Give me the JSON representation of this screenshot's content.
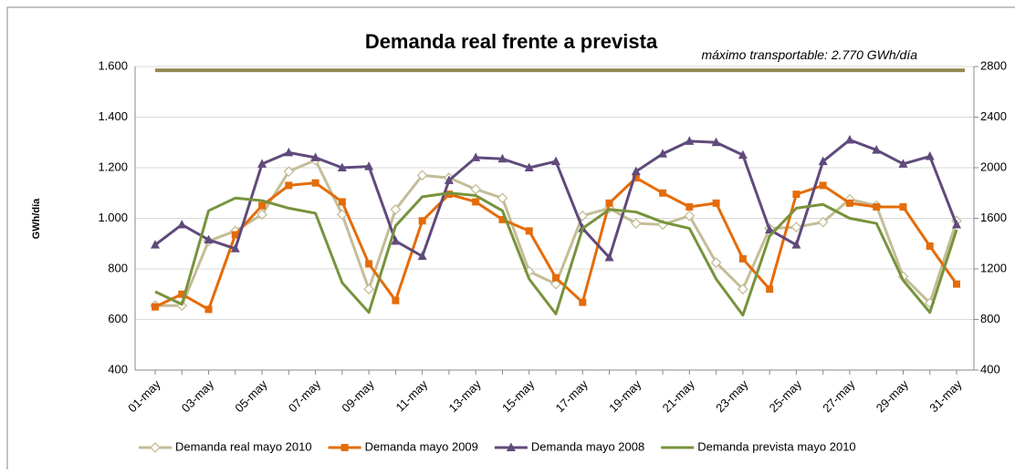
{
  "chart_data": {
    "type": "line",
    "title": "Demanda real frente a prevista",
    "y_label": "GWh/día",
    "categories": [
      "01-may",
      null,
      "03-may",
      null,
      "05-may",
      null,
      "07-may",
      null,
      "09-may",
      null,
      "11-may",
      null,
      "13-may",
      null,
      "15-may",
      null,
      "17-may",
      null,
      "19-may",
      null,
      "21-may",
      null,
      "23-may",
      null,
      "25-may",
      null,
      "27-may",
      null,
      "29-may",
      null,
      "31-may"
    ],
    "series": [
      {
        "name": "Demanda real mayo 2010",
        "color": "#c4bd97",
        "marker": "diamond",
        "values": [
          655,
          655,
          910,
          950,
          1015,
          1185,
          1230,
          1015,
          720,
          1035,
          1170,
          1160,
          1115,
          1080,
          790,
          740,
          1010,
          1040,
          980,
          975,
          1010,
          825,
          720,
          960,
          965,
          985,
          1075,
          1050,
          770,
          665,
          990
        ]
      },
      {
        "name": "Demanda mayo 2009",
        "color": "#e46c0a",
        "marker": "square",
        "values": [
          650,
          700,
          640,
          935,
          1050,
          1130,
          1140,
          1065,
          820,
          675,
          990,
          1095,
          1065,
          995,
          950,
          765,
          668,
          1060,
          1160,
          1100,
          1045,
          1060,
          840,
          720,
          1095,
          1130,
          1060,
          1045,
          1045,
          890,
          740
        ]
      },
      {
        "name": "Demanda mayo 2008",
        "color": "#604a7b",
        "marker": "triangle",
        "values": [
          895,
          975,
          915,
          880,
          1215,
          1260,
          1240,
          1200,
          1205,
          910,
          850,
          1150,
          1240,
          1235,
          1200,
          1225,
          960,
          845,
          1185,
          1255,
          1305,
          1300,
          1250,
          955,
          895,
          1225,
          1310,
          1270,
          1215,
          1245,
          975
        ]
      },
      {
        "name": "Demanda prevista mayo 2010",
        "color": "#77933c",
        "marker": "none",
        "values": [
          710,
          660,
          1030,
          1080,
          1070,
          1040,
          1020,
          745,
          628,
          970,
          1085,
          1100,
          1090,
          1030,
          760,
          622,
          960,
          1035,
          1025,
          985,
          960,
          760,
          617,
          930,
          1040,
          1055,
          1000,
          980,
          755,
          628,
          955
        ]
      }
    ],
    "reference_line": {
      "value": 2770,
      "axis": "y2",
      "color": "#938953",
      "label": "máximo transportable: 2.770 GWh/día"
    },
    "ylim": [
      400,
      1600
    ],
    "yticks": [
      400,
      600,
      800,
      {
        "value": 1000,
        "label": "1.000"
      },
      {
        "value": 1200,
        "label": "1.200"
      },
      {
        "value": 1400,
        "label": "1.400"
      },
      {
        "value": 1600,
        "label": "1.600"
      }
    ],
    "y2lim": [
      400,
      2800
    ],
    "y2ticks": [
      400,
      800,
      1200,
      1600,
      2000,
      2400,
      2800
    ],
    "grid": true,
    "legend": "bottom"
  }
}
